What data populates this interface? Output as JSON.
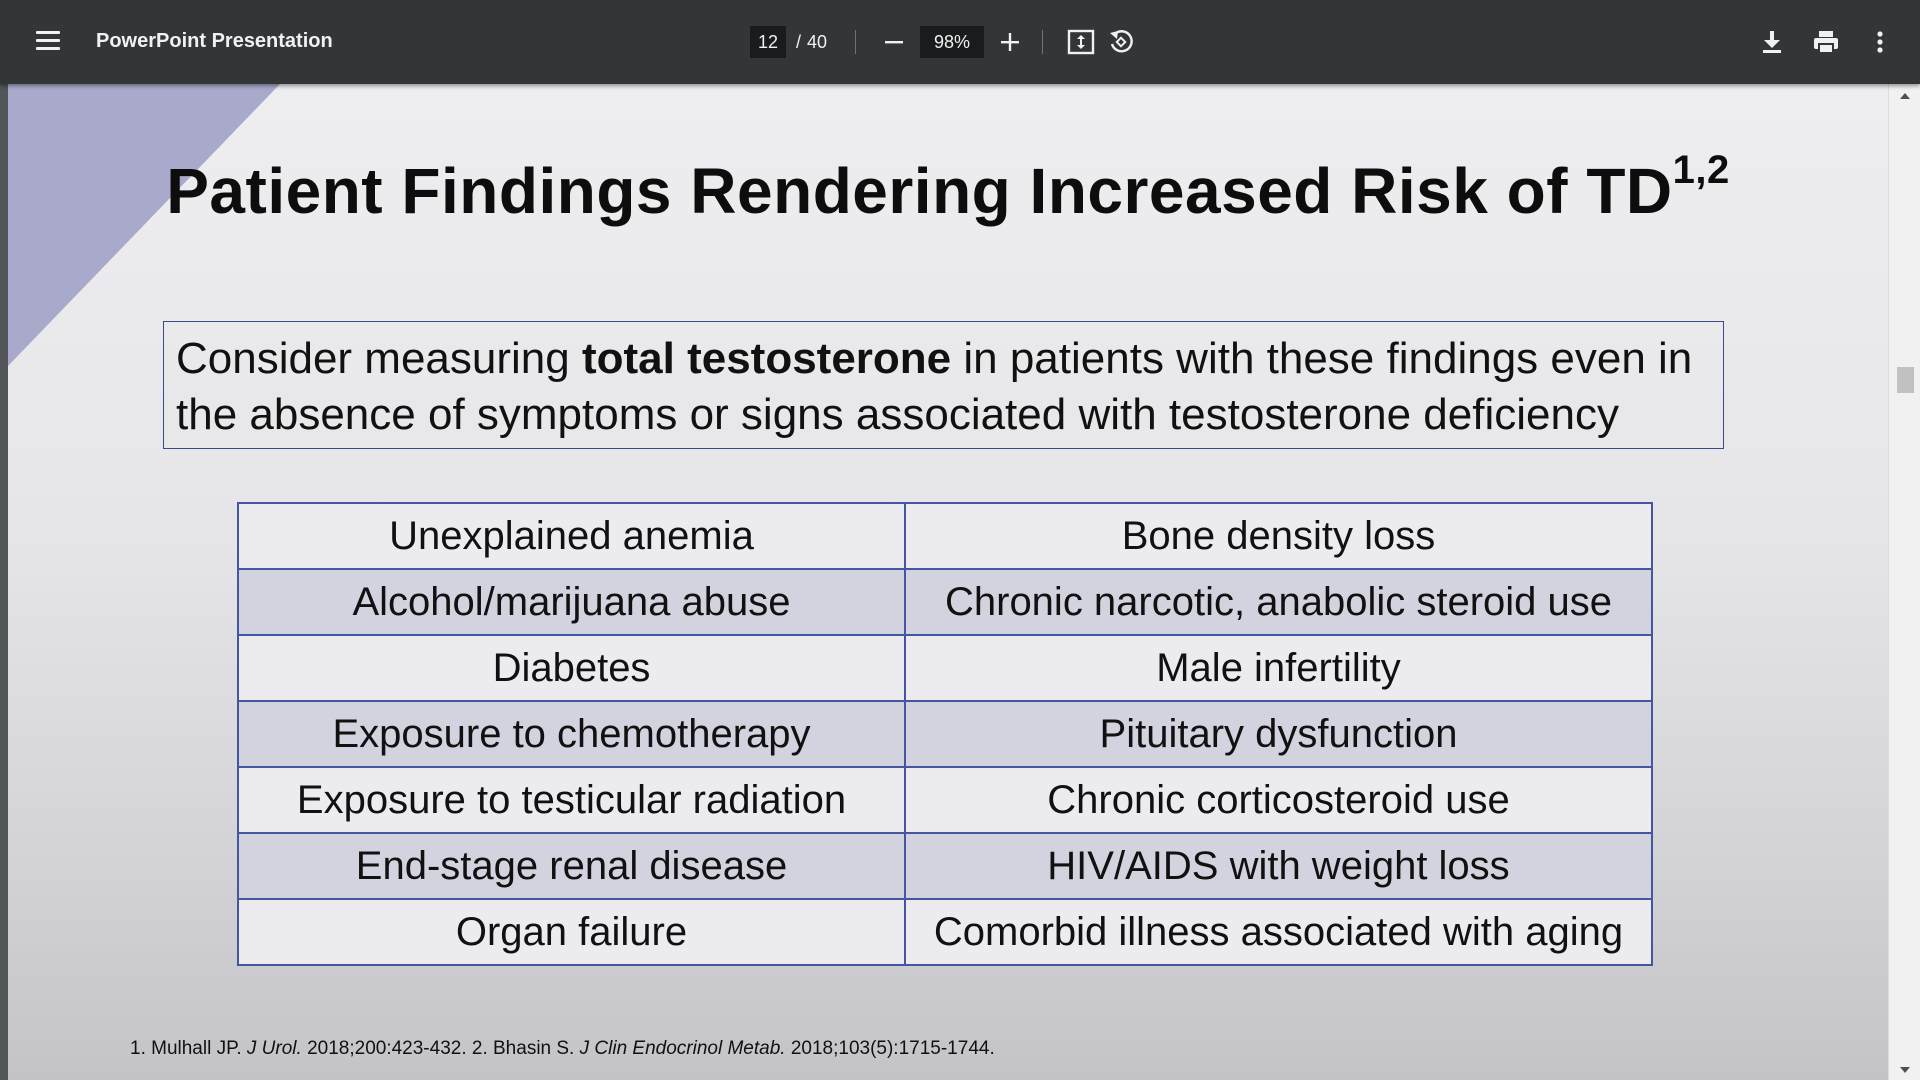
{
  "toolbar": {
    "menu_icon": "hamburger-menu-icon",
    "title": "PowerPoint Presentation",
    "page_current": "12",
    "page_separator": "/",
    "page_total": "40",
    "zoom_value": "98%",
    "icons": [
      "minus-icon",
      "plus-icon",
      "fit-to-page-icon",
      "rotate-icon",
      "download-icon",
      "print-icon",
      "more-vert-icon"
    ]
  },
  "slide": {
    "title": "Patient Findings Rendering Increased Risk of TD",
    "title_superscript": "1,2",
    "callout_before": "Consider measuring ",
    "callout_bold": "total testosterone",
    "callout_after": " in patients with these findings even in the absence of symptoms or signs associated with testosterone deficiency",
    "table_rows": [
      [
        "Unexplained anemia",
        "Bone density loss"
      ],
      [
        "Alcohol/marijuana abuse",
        "Chronic narcotic, anabolic steroid use"
      ],
      [
        "Diabetes",
        "Male infertility"
      ],
      [
        "Exposure to chemotherapy",
        "Pituitary dysfunction"
      ],
      [
        "Exposure to testicular radiation",
        "Chronic corticosteroid use"
      ],
      [
        "End-stage renal disease",
        "HIV/AIDS with weight loss"
      ],
      [
        "Organ failure",
        "Comorbid illness associated with aging"
      ]
    ],
    "references": {
      "r1_author": "1. Mulhall JP. ",
      "r1_journal": "J Urol.",
      "r1_cite": " 2018;200:423-432.  2. Bhasin S. ",
      "r2_journal": "J Clin Endocrinol Metab.",
      "r2_cite": " 2018;103(5):1715-1744."
    }
  },
  "colors": {
    "toolbar_bg": "#323639",
    "slide_accent": "#a9aacb",
    "table_border": "#4456a0",
    "table_row_alt": "#d2d3de"
  }
}
